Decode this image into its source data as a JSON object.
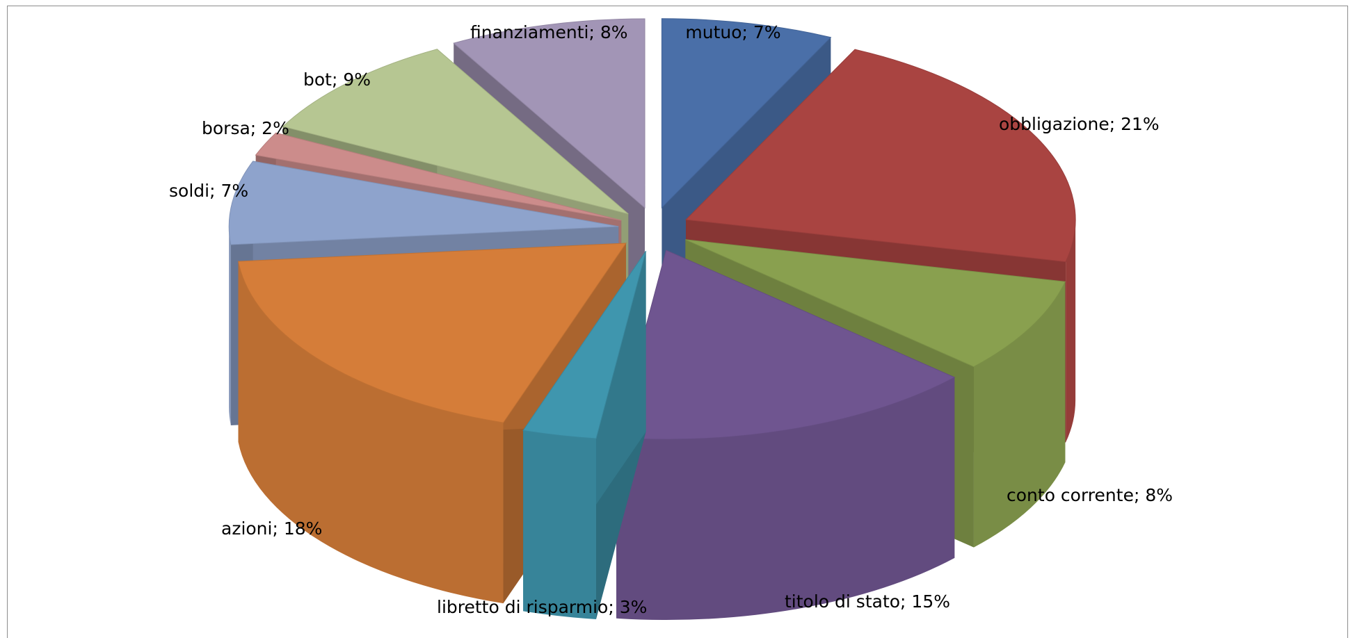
{
  "chart_data": {
    "type": "pie",
    "style": "3d-exploded",
    "title": "",
    "slices": [
      {
        "label": "mutuo; 7%",
        "name": "mutuo",
        "value": 7,
        "color": "#4A6FA8"
      },
      {
        "label": "obbligazione; 21%",
        "name": "obbligazione",
        "value": 21,
        "color": "#A94441"
      },
      {
        "label": "conto corrente; 8%",
        "name": "conto corrente",
        "value": 8,
        "color": "#89A04F"
      },
      {
        "label": "titolo di stato; 15%",
        "name": "titolo di stato",
        "value": 15,
        "color": "#6F5590"
      },
      {
        "label": "libretto di risparmio; 3%",
        "name": "libretto di risparmio",
        "value": 3,
        "color": "#3F96AE"
      },
      {
        "label": "azioni; 18%",
        "name": "azioni",
        "value": 18,
        "color": "#D57D39"
      },
      {
        "label": "soldi; 7%",
        "name": "soldi",
        "value": 7,
        "color": "#8EA3CC"
      },
      {
        "label": "borsa; 2%",
        "name": "borsa",
        "value": 2,
        "color": "#CC8C8B"
      },
      {
        "label": "bot; 9%",
        "name": "bot",
        "value": 9,
        "color": "#B6C692"
      },
      {
        "label": "finanziamenti; 8%",
        "name": "finanziamenti",
        "value": 8,
        "color": "#A295B6"
      }
    ]
  }
}
